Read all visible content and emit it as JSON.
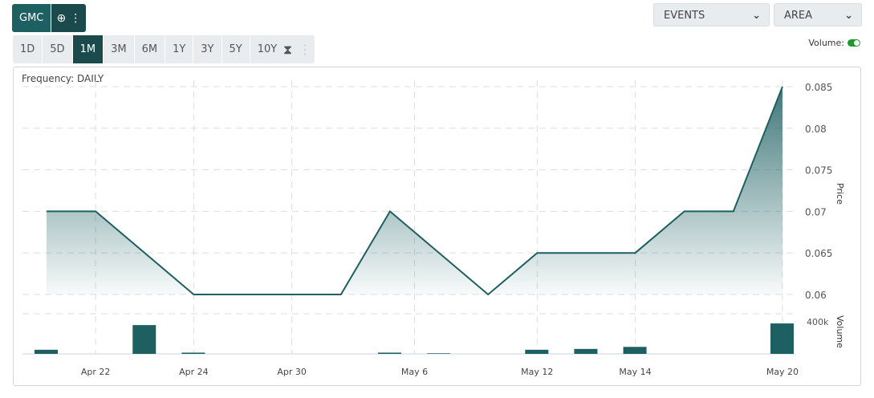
{
  "symbol": {
    "name": "GMC",
    "add_icon": "plus-circle-icon",
    "menu_icon": "kebab-icon"
  },
  "ranges": [
    "1D",
    "5D",
    "1M",
    "3M",
    "6M",
    "1Y",
    "3Y",
    "5Y",
    "10Y"
  ],
  "active_range": "1M",
  "events_label": "EVENTS",
  "chart_type_label": "AREA",
  "volume_label": "Volume:",
  "volume_on": true,
  "frequency": "Frequency: DAILY",
  "chart_data": {
    "type": "area",
    "y_axis_label": "Price",
    "volume_axis_label": "Volume",
    "price_ticks": [
      0.06,
      0.065,
      0.07,
      0.075,
      0.08,
      0.085
    ],
    "volume_tick": "400k",
    "x_ticks": [
      {
        "session": 1,
        "label": "Apr 22"
      },
      {
        "session": 3,
        "label": "Apr 24"
      },
      {
        "session": 5,
        "label": "Apr 30"
      },
      {
        "session": 7.5,
        "label": "May 6"
      },
      {
        "session": 10,
        "label": "May 12"
      },
      {
        "session": 12,
        "label": "May 14"
      },
      {
        "session": 15,
        "label": "May 20"
      }
    ],
    "price": [
      {
        "session": 0,
        "value": 0.07
      },
      {
        "session": 1,
        "value": 0.07
      },
      {
        "session": 3,
        "value": 0.06
      },
      {
        "session": 6,
        "value": 0.06
      },
      {
        "session": 7,
        "value": 0.07
      },
      {
        "session": 9,
        "value": 0.06
      },
      {
        "session": 10,
        "value": 0.065
      },
      {
        "session": 12,
        "value": 0.065
      },
      {
        "session": 13,
        "value": 0.07
      },
      {
        "session": 14,
        "value": 0.07
      },
      {
        "session": 15,
        "value": 0.085
      }
    ],
    "volume": [
      {
        "session": 0,
        "value": 50000
      },
      {
        "session": 2,
        "value": 350000
      },
      {
        "session": 3,
        "value": 15000
      },
      {
        "session": 7,
        "value": 15000
      },
      {
        "session": 8,
        "value": 7000
      },
      {
        "session": 10,
        "value": 50000
      },
      {
        "session": 11,
        "value": 60000
      },
      {
        "session": 12,
        "value": 85000
      },
      {
        "session": 15,
        "value": 370000
      }
    ],
    "color": "#1e5f62"
  }
}
